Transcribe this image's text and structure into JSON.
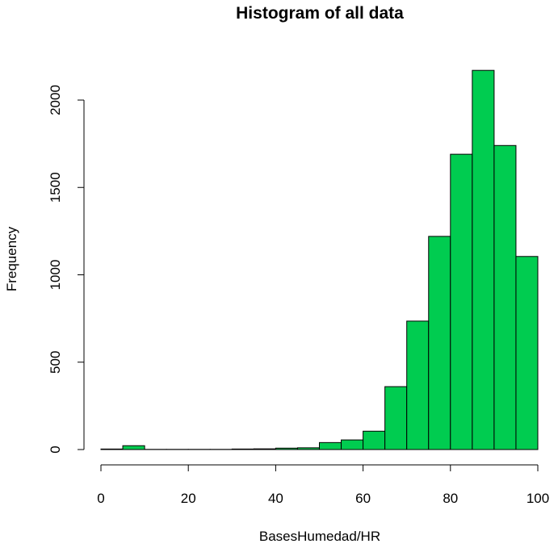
{
  "chart_data": {
    "type": "bar",
    "title": "Histogram of all data",
    "xlabel": "BasesHumedad/HR",
    "ylabel": "Frequency",
    "bin_width": 5,
    "x_breaks": [
      0,
      5,
      10,
      15,
      20,
      25,
      30,
      35,
      40,
      45,
      50,
      55,
      60,
      65,
      70,
      75,
      80,
      85,
      90,
      95,
      100
    ],
    "values": [
      3,
      22,
      1,
      1,
      1,
      1,
      3,
      4,
      8,
      10,
      40,
      55,
      105,
      360,
      735,
      1220,
      1690,
      2170,
      1740,
      1105
    ],
    "xlim": [
      0,
      100
    ],
    "ylim": [
      0,
      2200
    ],
    "x_ticks": [
      0,
      20,
      40,
      60,
      80,
      100
    ],
    "y_ticks": [
      0,
      500,
      1000,
      1500,
      2000
    ],
    "bar_color": "#00CC50",
    "grid": false,
    "legend": "none"
  }
}
